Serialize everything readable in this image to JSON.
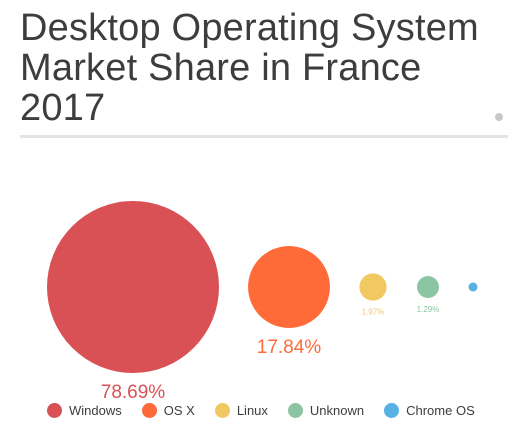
{
  "title": "Desktop Operating System Market Share in France 2017",
  "chart_data": {
    "type": "bubble",
    "title": "Desktop Operating System Market Share in France 2017",
    "legend_position": "bottom",
    "series": [
      {
        "name": "Windows",
        "value": 78.69,
        "label": "78.69%",
        "color": "#d95155"
      },
      {
        "name": "OS X",
        "value": 17.84,
        "label": "17.84%",
        "color": "#ff6b38"
      },
      {
        "name": "Linux",
        "value": 1.97,
        "label": "1.97%",
        "color": "#f2c862"
      },
      {
        "name": "Unknown",
        "value": 1.29,
        "label": "1.29%",
        "color": "#8cc5a2"
      },
      {
        "name": "Chrome OS",
        "value": 0.21,
        "label": "",
        "color": "#57b1e4"
      }
    ]
  }
}
